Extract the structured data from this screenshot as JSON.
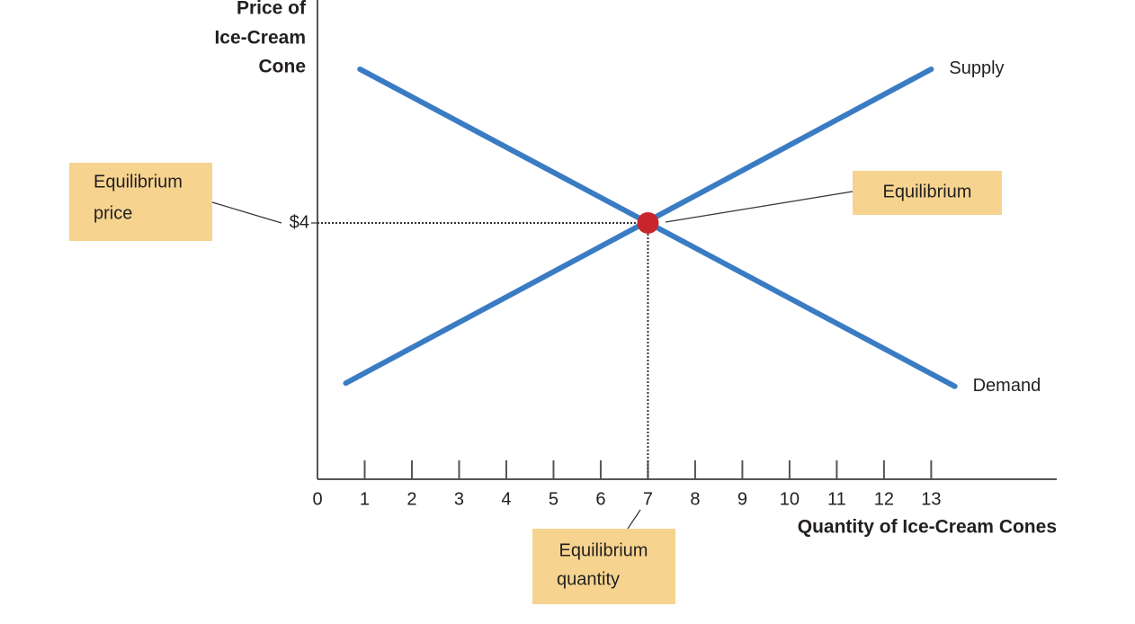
{
  "chart_data": {
    "type": "line",
    "ylabel": [
      "Price of",
      "Ice-Cream",
      "Cone"
    ],
    "xlabel": "Quantity of Ice-Cream Cones",
    "xlim": [
      0,
      15.66
    ],
    "ylim": [
      0,
      7.48
    ],
    "xticks": [
      0,
      1,
      2,
      3,
      4,
      5,
      6,
      7,
      8,
      9,
      10,
      11,
      12,
      13
    ],
    "yticks": [
      {
        "value": 4,
        "label": "$4"
      }
    ],
    "series": [
      {
        "name": "Supply",
        "color": "#3a7cc4",
        "x": [
          0.6,
          13.0
        ],
        "values": [
          1.5,
          6.4
        ]
      },
      {
        "name": "Demand",
        "color": "#3a7cc4",
        "x": [
          0.9,
          13.5
        ],
        "values": [
          6.4,
          1.45
        ]
      }
    ],
    "equilibrium": {
      "x": 7,
      "y": 4,
      "color": "#c8262a"
    },
    "annotations": {
      "price": [
        "Equilibrium",
        "price"
      ],
      "point": [
        "Equilibrium"
      ],
      "quantity": [
        "Equilibrium",
        "quantity"
      ]
    }
  }
}
